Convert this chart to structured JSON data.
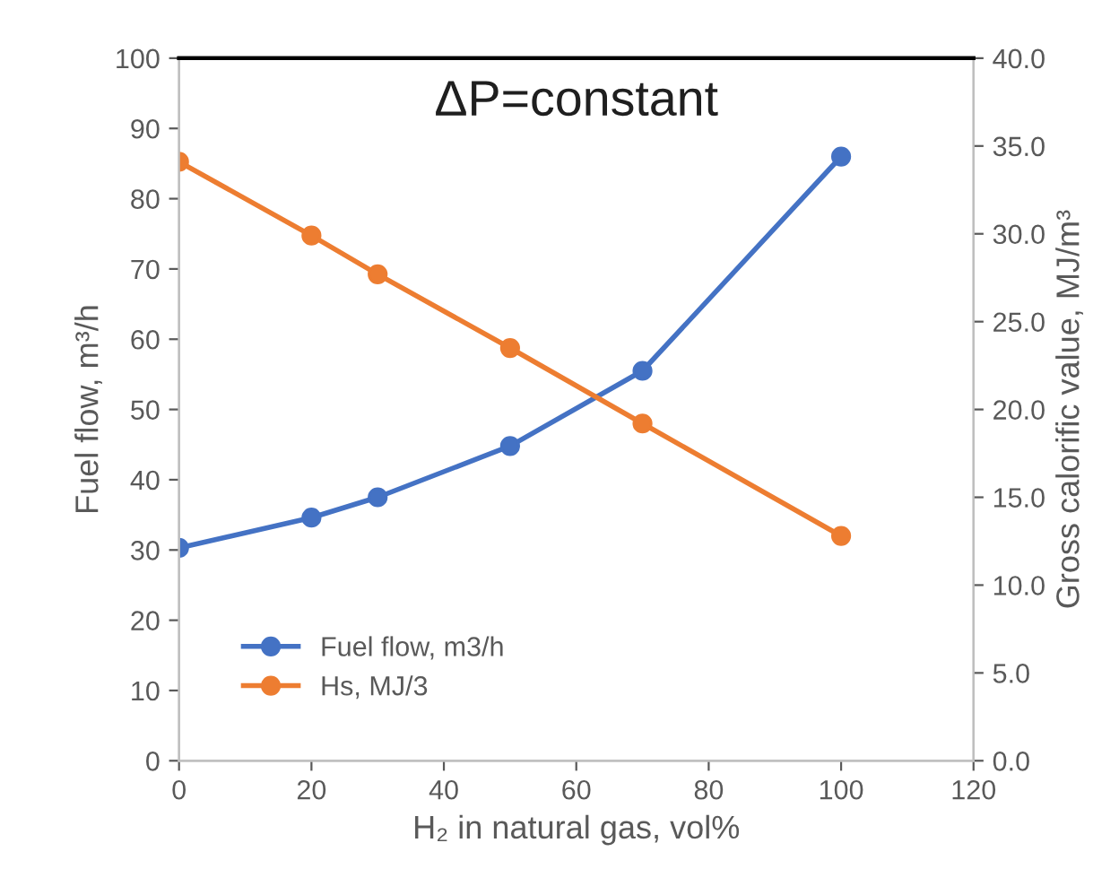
{
  "chart_data": {
    "type": "line",
    "title": "ΔP=constant",
    "xlabel": "H₂ in natural gas, vol%",
    "ylabel": "Fuel flow, m³/h",
    "y2label": "Gross calorific value, MJ/m³",
    "x": [
      0,
      20,
      30,
      50,
      70,
      100
    ],
    "series": [
      {
        "name": "Fuel flow, m3/h",
        "color": "#4472c4",
        "values": [
          30.3,
          34.6,
          37.5,
          44.8,
          55.5,
          86.0
        ]
      },
      {
        "name": "Hs, MJ/3",
        "color": "#ed7d31",
        "axis": "y2",
        "values": [
          34.1,
          29.9,
          27.7,
          23.5,
          19.2,
          12.8
        ]
      }
    ],
    "xlim": [
      0,
      120
    ],
    "xticks": [
      0,
      20,
      40,
      60,
      80,
      100,
      120
    ],
    "ylim": [
      0,
      100
    ],
    "yticks": [
      0,
      10,
      20,
      30,
      40,
      50,
      60,
      70,
      80,
      90,
      100
    ],
    "y2lim": [
      0,
      40
    ],
    "y2ticks": [
      {
        "value": 0,
        "label": "0.0"
      },
      {
        "value": 5,
        "label": "5.0"
      },
      {
        "value": 10,
        "label": "10.0"
      },
      {
        "value": 15,
        "label": "15.0"
      },
      {
        "value": 20,
        "label": "20.0"
      },
      {
        "value": 25,
        "label": "25.0"
      },
      {
        "value": 30,
        "label": "30.0"
      },
      {
        "value": 35,
        "label": "35.0"
      },
      {
        "value": 40,
        "label": "40.0"
      }
    ],
    "marker": "circle",
    "line_style": "solid",
    "grid": false,
    "legend": "bottom left"
  }
}
